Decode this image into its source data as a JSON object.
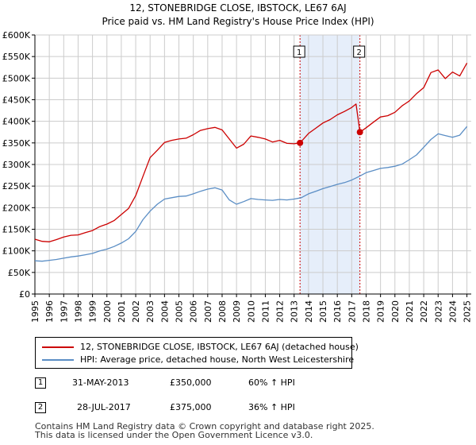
{
  "chart_data": {
    "type": "line",
    "title": "12, STONEBRIDGE CLOSE, IBSTOCK, LE67 6AJ",
    "subtitle": "Price paid vs. HM Land Registry's House Price Index (HPI)",
    "xlabel": "",
    "ylabel": "",
    "xlim": [
      1995,
      2025.3
    ],
    "ylim": [
      0,
      600000
    ],
    "x_ticks": [
      "1995",
      "1996",
      "1997",
      "1998",
      "1999",
      "2000",
      "2001",
      "2002",
      "2003",
      "2004",
      "2005",
      "2006",
      "2007",
      "2008",
      "2009",
      "2010",
      "2011",
      "2012",
      "2013",
      "2014",
      "2015",
      "2016",
      "2017",
      "2018",
      "2019",
      "2020",
      "2021",
      "2022",
      "2023",
      "2024",
      "2025"
    ],
    "y_ticks": [
      {
        "value": 0,
        "label": "£0"
      },
      {
        "value": 50000,
        "label": "£50K"
      },
      {
        "value": 100000,
        "label": "£100K"
      },
      {
        "value": 150000,
        "label": "£150K"
      },
      {
        "value": 200000,
        "label": "£200K"
      },
      {
        "value": 250000,
        "label": "£250K"
      },
      {
        "value": 300000,
        "label": "£300K"
      },
      {
        "value": 350000,
        "label": "£350K"
      },
      {
        "value": 400000,
        "label": "£400K"
      },
      {
        "value": 450000,
        "label": "£450K"
      },
      {
        "value": 500000,
        "label": "£500K"
      },
      {
        "value": 550000,
        "label": "£550K"
      },
      {
        "value": 600000,
        "label": "£600K"
      }
    ],
    "grid": true,
    "shaded_region": {
      "x": [
        2013.41,
        2017.57
      ]
    },
    "series": [
      {
        "name": "12, STONEBRIDGE CLOSE, IBSTOCK, LE67 6AJ (detached house)",
        "color": "#cc0000",
        "x": [
          1995,
          1995.5,
          1996,
          1996.5,
          1997,
          1997.5,
          1998,
          1998.5,
          1999,
          1999.5,
          2000,
          2000.5,
          2001,
          2001.5,
          2002,
          2002.5,
          2003,
          2003.5,
          2004,
          2004.5,
          2005,
          2005.5,
          2006,
          2006.5,
          2007,
          2007.5,
          2008,
          2008.5,
          2009,
          2009.5,
          2010,
          2010.5,
          2011,
          2011.5,
          2012,
          2012.5,
          2013,
          2013.41,
          2014,
          2014.5,
          2015,
          2015.5,
          2016,
          2016.5,
          2017,
          2017.3,
          2017.57,
          2018,
          2018.5,
          2019,
          2019.5,
          2020,
          2020.5,
          2021,
          2021.5,
          2022,
          2022.5,
          2023,
          2023.5,
          2024,
          2024.5,
          2025
        ],
        "values": [
          127000,
          122000,
          121000,
          126000,
          132000,
          136000,
          137000,
          142000,
          147000,
          156000,
          162000,
          170000,
          184000,
          198000,
          228000,
          272000,
          316000,
          333000,
          351000,
          356000,
          359000,
          361000,
          369000,
          379000,
          383000,
          386000,
          380000,
          359000,
          338000,
          347000,
          366000,
          363000,
          359000,
          352000,
          356000,
          349000,
          348000,
          350000,
          372000,
          384000,
          396000,
          404000,
          415000,
          423000,
          432000,
          440000,
          375000,
          385000,
          398000,
          410000,
          413000,
          421000,
          436000,
          447000,
          464000,
          478000,
          513000,
          519000,
          499000,
          514000,
          505000,
          535000
        ]
      },
      {
        "name": "HPI: Average price, detached house, North West Leicestershire",
        "color": "#5b8ec5",
        "x": [
          1995,
          1995.5,
          1996,
          1996.5,
          1997,
          1997.5,
          1998,
          1998.5,
          1999,
          1999.5,
          2000,
          2000.5,
          2001,
          2001.5,
          2002,
          2002.5,
          2003,
          2003.5,
          2004,
          2004.5,
          2005,
          2005.5,
          2006,
          2006.5,
          2007,
          2007.5,
          2008,
          2008.5,
          2009,
          2009.5,
          2010,
          2010.5,
          2011,
          2011.5,
          2012,
          2012.5,
          2013,
          2013.5,
          2014,
          2014.5,
          2015,
          2015.5,
          2016,
          2016.5,
          2017,
          2017.5,
          2018,
          2018.5,
          2019,
          2019.5,
          2020,
          2020.5,
          2021,
          2021.5,
          2022,
          2022.5,
          2023,
          2023.5,
          2024,
          2024.5,
          2025
        ],
        "values": [
          77000,
          76000,
          78000,
          80000,
          83000,
          86000,
          88000,
          91000,
          94000,
          100000,
          104000,
          110000,
          118000,
          128000,
          145000,
          172000,
          192000,
          208000,
          220000,
          223000,
          226000,
          227000,
          232000,
          238000,
          243000,
          246000,
          241000,
          218000,
          208000,
          214000,
          221000,
          219000,
          218000,
          217000,
          219000,
          218000,
          220000,
          223000,
          232000,
          238000,
          244000,
          249000,
          254000,
          258000,
          264000,
          272000,
          281000,
          286000,
          291000,
          293000,
          296000,
          301000,
          311000,
          322000,
          340000,
          358000,
          371000,
          367000,
          363000,
          368000,
          388000
        ]
      }
    ],
    "sales": [
      {
        "id": "1",
        "x": 2013.41,
        "price": 350000
      },
      {
        "id": "2",
        "x": 2017.57,
        "price": 375000
      }
    ]
  },
  "legend": {
    "property_label": "12, STONEBRIDGE CLOSE, IBSTOCK, LE67 6AJ (detached house)",
    "hpi_label": "HPI: Average price, detached house, North West Leicestershire"
  },
  "transactions": [
    {
      "id": "1",
      "date": "31-MAY-2013",
      "price": "£350,000",
      "change": "60% ↑ HPI"
    },
    {
      "id": "2",
      "date": "28-JUL-2017",
      "price": "£375,000",
      "change": "36% ↑ HPI"
    }
  ],
  "footer": {
    "line1": "Contains HM Land Registry data © Crown copyright and database right 2025.",
    "line2": "This data is licensed under the Open Government Licence v3.0."
  }
}
